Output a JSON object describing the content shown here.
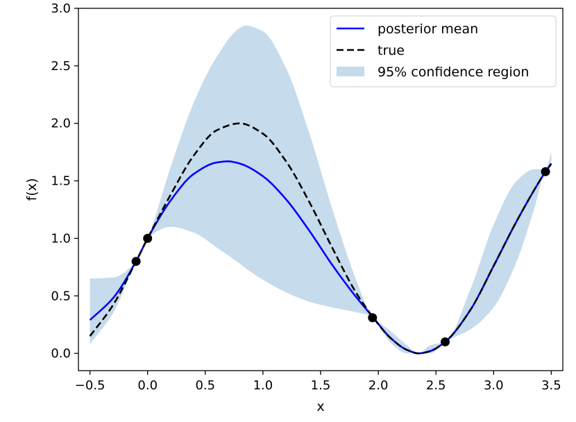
{
  "chart_data": {
    "type": "line",
    "title": "",
    "xlabel": "x",
    "ylabel": "f(x)",
    "xlim": [
      -0.6,
      3.6
    ],
    "ylim": [
      -0.15,
      3.0
    ],
    "xticks": [
      -0.5,
      0.0,
      0.5,
      1.0,
      1.5,
      2.0,
      2.5,
      3.0,
      3.5
    ],
    "xtick_labels": [
      "−0.5",
      "0.0",
      "0.5",
      "1.0",
      "1.5",
      "2.0",
      "2.5",
      "3.0",
      "3.5"
    ],
    "yticks": [
      0.0,
      0.5,
      1.0,
      1.5,
      2.0,
      2.5,
      3.0
    ],
    "ytick_labels": [
      "0.0",
      "0.5",
      "1.0",
      "1.5",
      "2.0",
      "2.5",
      "3.0"
    ],
    "grid": false,
    "legend_position": "top-right",
    "legend": [
      {
        "label": "posterior mean",
        "kind": "line",
        "color": "#0000ff"
      },
      {
        "label": "true",
        "kind": "dashed",
        "color": "#000000"
      },
      {
        "label": "95% confidence region",
        "kind": "patch",
        "color": "#c6dbeb"
      }
    ],
    "series": [
      {
        "name": "posterior mean",
        "color": "#0000ff",
        "x": [
          -0.5,
          -0.3,
          -0.1,
          0.0,
          0.2,
          0.4,
          0.6,
          0.7,
          0.8,
          1.0,
          1.2,
          1.4,
          1.6,
          1.8,
          1.95,
          2.1,
          2.25,
          2.35,
          2.45,
          2.58,
          2.8,
          3.0,
          3.2,
          3.45,
          3.5
        ],
        "y": [
          0.29,
          0.48,
          0.8,
          1.0,
          1.33,
          1.56,
          1.66,
          1.67,
          1.65,
          1.54,
          1.34,
          1.07,
          0.77,
          0.5,
          0.32,
          0.14,
          0.03,
          0.0,
          0.02,
          0.1,
          0.38,
          0.76,
          1.15,
          1.58,
          1.65
        ]
      },
      {
        "name": "true",
        "color": "#000000",
        "dashed": true,
        "x": [
          -0.5,
          -0.3,
          -0.1,
          0.0,
          0.2,
          0.4,
          0.6,
          0.8,
          1.0,
          1.2,
          1.4,
          1.6,
          1.8,
          1.95,
          2.1,
          2.25,
          2.35,
          2.45,
          2.58,
          2.8,
          3.0,
          3.2,
          3.45,
          3.5
        ],
        "y": [
          0.15,
          0.42,
          0.8,
          1.0,
          1.38,
          1.72,
          1.94,
          2.0,
          1.91,
          1.67,
          1.32,
          0.92,
          0.54,
          0.32,
          0.14,
          0.03,
          0.0,
          0.02,
          0.1,
          0.38,
          0.76,
          1.15,
          1.58,
          1.65
        ]
      }
    ],
    "confidence_region": {
      "name": "95% confidence region",
      "color": "#c6dbeb",
      "x": [
        -0.5,
        -0.3,
        -0.1,
        0.0,
        0.2,
        0.4,
        0.6,
        0.8,
        0.85,
        1.0,
        1.2,
        1.4,
        1.6,
        1.8,
        1.95,
        2.1,
        2.25,
        2.35,
        2.45,
        2.58,
        2.8,
        3.0,
        3.2,
        3.35,
        3.45,
        3.5
      ],
      "upper": [
        0.65,
        0.66,
        0.8,
        1.0,
        1.62,
        2.18,
        2.58,
        2.83,
        2.85,
        2.8,
        2.48,
        1.92,
        1.26,
        0.66,
        0.32,
        0.2,
        0.07,
        0.0,
        0.07,
        0.1,
        0.56,
        1.12,
        1.5,
        1.6,
        1.6,
        1.75
      ],
      "lower": [
        0.08,
        0.35,
        0.8,
        1.0,
        1.1,
        1.05,
        0.92,
        0.78,
        0.74,
        0.64,
        0.53,
        0.45,
        0.4,
        0.36,
        0.32,
        0.1,
        0.0,
        0.0,
        0.0,
        0.1,
        0.21,
        0.4,
        0.8,
        1.25,
        1.58,
        1.62
      ]
    },
    "observations": {
      "name": "observations",
      "color": "#000000",
      "x": [
        -0.1,
        0.0,
        1.95,
        2.58,
        3.45
      ],
      "y": [
        0.8,
        1.0,
        0.31,
        0.1,
        1.58
      ]
    }
  }
}
